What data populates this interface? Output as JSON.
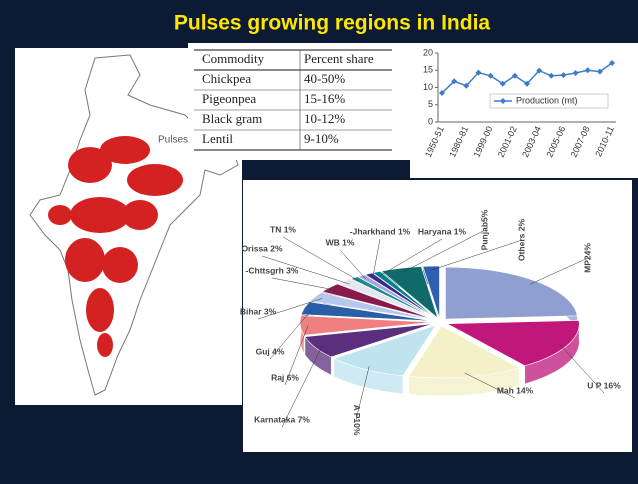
{
  "title": "Pulses growing regions in India",
  "map_label": "Pulses",
  "table": {
    "header": [
      "Commodity",
      "Percent share"
    ],
    "rows": [
      [
        "Chickpea",
        "40-50%"
      ],
      [
        "Pigeonpea",
        "15-16%"
      ],
      [
        "Black gram",
        "10-12%"
      ],
      [
        "Lentil",
        "9-10%"
      ]
    ]
  },
  "chart_data": [
    {
      "type": "line",
      "categories": [
        "1950-51",
        null,
        "1980-81",
        null,
        "1999-00",
        null,
        "2001-02",
        null,
        "2003-04",
        null,
        "2005-06",
        null,
        "2007-08",
        null,
        "2010-11"
      ],
      "series": [
        {
          "name": "Production (mt)",
          "color": "#3d7cc9",
          "values": [
            8.4,
            11.8,
            10.5,
            14.3,
            13.4,
            11.1,
            13.4,
            11.1,
            14.9,
            13.4,
            13.6,
            14.2,
            15.0,
            14.6,
            17.1
          ]
        }
      ],
      "ylim": [
        0,
        20
      ],
      "yticks": [
        0,
        5,
        10,
        15,
        20
      ],
      "legend": "inside-right"
    },
    {
      "type": "pie",
      "values": [
        24,
        16,
        14,
        10,
        7,
        6,
        4,
        3,
        3,
        2,
        1,
        1,
        1,
        1,
        5,
        2
      ],
      "value_labels": [
        "MP24%",
        "U P 16%",
        "Mah 14%",
        "A P10%",
        "Karnataka 7%",
        "Raj 6%",
        "Guj 4%",
        "Bihar 3%",
        "-Chttsgrh 3%",
        "Orissa 2%",
        "TN 1%",
        "WB 1%",
        "-Jharkhand 1%",
        "Haryana 1%",
        "Punjab5%",
        "Others 2%"
      ],
      "colors": [
        "#8e9fd0",
        "#c0187a",
        "#f4f0c8",
        "#bfe4ef",
        "#5b2e7e",
        "#f08080",
        "#2a5fa8",
        "#b6c7ee",
        "#8b1a4c",
        "#e7e5f0",
        "#1c8c8f",
        "#a6a6d8",
        "#3a2a8a",
        "#00808a",
        "#106a6a",
        "#2e5fb0"
      ]
    }
  ]
}
